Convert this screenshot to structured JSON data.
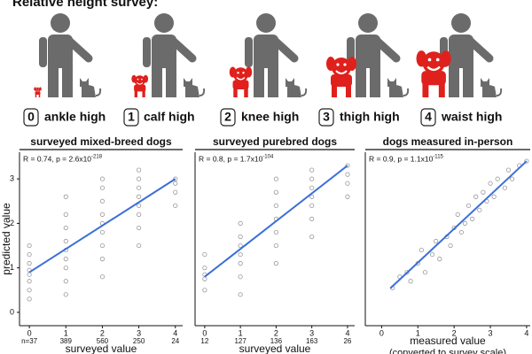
{
  "header": {
    "title": "Relative height survey:"
  },
  "levels": [
    {
      "number": 0,
      "label": "ankle high"
    },
    {
      "number": 1,
      "label": "calf high"
    },
    {
      "number": 2,
      "label": "knee high"
    },
    {
      "number": 3,
      "label": "thigh high"
    },
    {
      "number": 4,
      "label": "waist high"
    }
  ],
  "chart_data": [
    {
      "type": "scatter",
      "title": "surveyed mixed-breed dogs",
      "x_label": "surveyed value",
      "y_label": "predicted value",
      "annotation": {
        "text": "R = 0.74, p = 2.6x10",
        "exponent": "-218"
      },
      "n_labels": [
        "n=37",
        "389",
        "560",
        "250",
        "24"
      ],
      "xlim": [
        -0.27,
        4.2
      ],
      "ylim": [
        -0.3,
        3.6
      ],
      "xticks": [
        0,
        1,
        2,
        3,
        4
      ],
      "yticks": [
        0,
        1,
        2,
        3
      ],
      "color": "#444444",
      "x": [
        0,
        0,
        0,
        0,
        0,
        0,
        0,
        0,
        1,
        1,
        1,
        1,
        1,
        1,
        1,
        1,
        1,
        2,
        2,
        2,
        2,
        2,
        2,
        2,
        2,
        2,
        3,
        3,
        3,
        3,
        3,
        3,
        3,
        3,
        4,
        4,
        4,
        4
      ],
      "y": [
        0.3,
        0.5,
        0.7,
        0.85,
        0.95,
        1.1,
        1.3,
        1.5,
        0.4,
        0.7,
        1.0,
        1.2,
        1.4,
        1.6,
        1.9,
        2.2,
        2.6,
        0.8,
        1.2,
        1.5,
        1.8,
        2.0,
        2.2,
        2.5,
        2.8,
        3.0,
        1.5,
        1.9,
        2.2,
        2.4,
        2.6,
        2.8,
        3.0,
        3.2,
        2.4,
        2.7,
        2.9,
        3.0
      ],
      "fit": {
        "x": [
          0,
          4
        ],
        "y": [
          0.9,
          3.0
        ],
        "color": "#3b6fd8"
      }
    },
    {
      "type": "scatter",
      "title": "surveyed purebred dogs",
      "x_label": "surveyed value",
      "annotation": {
        "text": "R = 0.8, p = 1.7x10",
        "exponent": "-104"
      },
      "n_labels": [
        "12",
        "127",
        "136",
        "163",
        "26"
      ],
      "xlim": [
        -0.27,
        4.2
      ],
      "ylim": [
        -0.3,
        3.6
      ],
      "xticks": [
        0,
        1,
        2,
        3,
        4
      ],
      "color": "#444444",
      "x": [
        0,
        0,
        0,
        0,
        0,
        1,
        1,
        1,
        1,
        1,
        1,
        1,
        2,
        2,
        2,
        2,
        2,
        2,
        2,
        3,
        3,
        3,
        3,
        3,
        3,
        3,
        4,
        4,
        4,
        4
      ],
      "y": [
        0.5,
        0.75,
        0.85,
        1.0,
        1.3,
        0.4,
        0.8,
        1.1,
        1.3,
        1.5,
        1.7,
        2.0,
        1.1,
        1.5,
        1.8,
        2.1,
        2.4,
        2.7,
        3.0,
        1.7,
        2.1,
        2.4,
        2.6,
        2.8,
        3.0,
        3.2,
        2.6,
        2.9,
        3.1,
        3.3
      ],
      "fit": {
        "x": [
          0,
          4
        ],
        "y": [
          0.8,
          3.3
        ],
        "color": "#3b6fd8"
      }
    },
    {
      "type": "scatter",
      "title": "dogs measured in-person",
      "x_label": "measured value",
      "x_label2": "(converted to survey scale)",
      "annotation": {
        "text": "R = 0.9, p = 1.1x10",
        "exponent": "-115"
      },
      "xlim": [
        -0.45,
        4.1
      ],
      "ylim": [
        -0.3,
        3.6
      ],
      "xticks": [
        0,
        1,
        2,
        3,
        4
      ],
      "color": "#444444",
      "x": [
        0.3,
        0.5,
        0.7,
        0.8,
        1.0,
        1.1,
        1.2,
        1.4,
        1.5,
        1.6,
        1.8,
        1.9,
        2.0,
        2.1,
        2.2,
        2.3,
        2.4,
        2.5,
        2.6,
        2.7,
        2.8,
        2.9,
        3.0,
        3.1,
        3.2,
        3.4,
        3.5,
        3.6,
        3.8,
        4.0
      ],
      "y": [
        0.55,
        0.8,
        0.9,
        0.7,
        1.1,
        1.4,
        0.9,
        1.3,
        1.6,
        1.2,
        1.7,
        1.5,
        1.9,
        2.2,
        1.8,
        2.0,
        2.4,
        2.1,
        2.6,
        2.3,
        2.7,
        2.5,
        2.9,
        2.6,
        3.0,
        2.8,
        3.2,
        3.0,
        3.3,
        3.4
      ],
      "fit": {
        "x": [
          0.24,
          4
        ],
        "y": [
          0.54,
          3.4
        ],
        "color": "#3b6fd8"
      }
    }
  ]
}
